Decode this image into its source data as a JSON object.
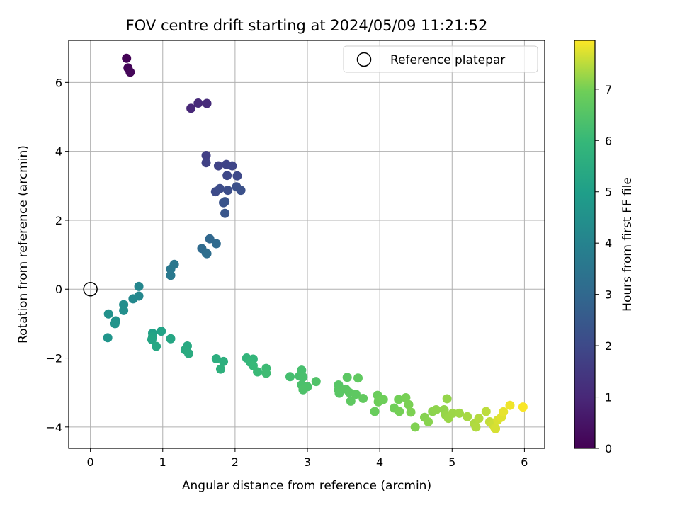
{
  "chart_data": {
    "type": "scatter",
    "title": "FOV centre drift starting at 2024/05/09 11:21:52",
    "xlabel": "Angular distance from reference (arcmin)",
    "ylabel": "Rotation from reference (arcmin)",
    "xlim": [
      -0.3,
      6.28
    ],
    "ylim": [
      -4.62,
      7.22
    ],
    "xticks": [
      0,
      1,
      2,
      3,
      4,
      5,
      6
    ],
    "yticks": [
      -4,
      -2,
      0,
      2,
      4,
      6
    ],
    "grid": true,
    "legend": {
      "placement": "top-right",
      "entries": [
        "Reference platepar"
      ]
    },
    "colorbar": {
      "label": "Hours from first FF file",
      "range": [
        0,
        7.95
      ],
      "ticks": [
        0,
        1,
        2,
        3,
        4,
        5,
        6,
        7
      ],
      "colormap": "viridis"
    },
    "reference_point": {
      "x": 0,
      "y": 0,
      "label": "Reference platepar"
    },
    "points": [
      {
        "x": 0.5,
        "y": 6.7,
        "t": 0.05
      },
      {
        "x": 0.52,
        "y": 6.42,
        "t": 0.1
      },
      {
        "x": 0.55,
        "y": 6.3,
        "t": 0.15
      },
      {
        "x": 1.39,
        "y": 5.25,
        "t": 1.0
      },
      {
        "x": 1.49,
        "y": 5.4,
        "t": 1.05
      },
      {
        "x": 1.61,
        "y": 5.39,
        "t": 1.1
      },
      {
        "x": 1.6,
        "y": 3.88,
        "t": 1.7
      },
      {
        "x": 1.6,
        "y": 3.67,
        "t": 1.75
      },
      {
        "x": 1.77,
        "y": 3.58,
        "t": 1.8
      },
      {
        "x": 1.88,
        "y": 3.62,
        "t": 1.85
      },
      {
        "x": 1.96,
        "y": 3.58,
        "t": 1.9
      },
      {
        "x": 1.89,
        "y": 3.3,
        "t": 1.95
      },
      {
        "x": 2.03,
        "y": 3.29,
        "t": 2.0
      },
      {
        "x": 1.73,
        "y": 2.83,
        "t": 2.05
      },
      {
        "x": 1.79,
        "y": 2.92,
        "t": 2.1
      },
      {
        "x": 1.9,
        "y": 2.87,
        "t": 2.15
      },
      {
        "x": 2.02,
        "y": 2.97,
        "t": 2.2
      },
      {
        "x": 2.08,
        "y": 2.87,
        "t": 2.25
      },
      {
        "x": 1.84,
        "y": 2.51,
        "t": 2.3
      },
      {
        "x": 1.86,
        "y": 2.54,
        "t": 2.35
      },
      {
        "x": 1.86,
        "y": 2.2,
        "t": 2.4
      },
      {
        "x": 1.65,
        "y": 1.46,
        "t": 3.0
      },
      {
        "x": 1.74,
        "y": 1.32,
        "t": 3.05
      },
      {
        "x": 1.54,
        "y": 1.18,
        "t": 3.1
      },
      {
        "x": 1.6,
        "y": 1.05,
        "t": 3.15
      },
      {
        "x": 1.61,
        "y": 1.03,
        "t": 3.2
      },
      {
        "x": 1.16,
        "y": 0.72,
        "t": 3.55
      },
      {
        "x": 1.11,
        "y": 0.58,
        "t": 3.6
      },
      {
        "x": 1.11,
        "y": 0.4,
        "t": 3.65
      },
      {
        "x": 0.67,
        "y": 0.08,
        "t": 4.1
      },
      {
        "x": 0.67,
        "y": -0.2,
        "t": 4.15
      },
      {
        "x": 0.59,
        "y": -0.28,
        "t": 4.2
      },
      {
        "x": 0.46,
        "y": -0.45,
        "t": 4.4
      },
      {
        "x": 0.46,
        "y": -0.62,
        "t": 4.45
      },
      {
        "x": 0.25,
        "y": -0.72,
        "t": 4.5
      },
      {
        "x": 0.35,
        "y": -0.92,
        "t": 4.55
      },
      {
        "x": 0.34,
        "y": -1.0,
        "t": 4.6
      },
      {
        "x": 0.24,
        "y": -1.41,
        "t": 4.65
      },
      {
        "x": 0.86,
        "y": -1.28,
        "t": 5.1
      },
      {
        "x": 0.98,
        "y": -1.22,
        "t": 5.15
      },
      {
        "x": 0.86,
        "y": -1.38,
        "t": 5.2
      },
      {
        "x": 0.85,
        "y": -1.46,
        "t": 5.25
      },
      {
        "x": 1.11,
        "y": -1.44,
        "t": 5.3
      },
      {
        "x": 0.91,
        "y": -1.66,
        "t": 5.35
      },
      {
        "x": 1.34,
        "y": -1.65,
        "t": 5.4
      },
      {
        "x": 1.31,
        "y": -1.76,
        "t": 5.45
      },
      {
        "x": 1.36,
        "y": -1.87,
        "t": 5.5
      },
      {
        "x": 1.74,
        "y": -2.02,
        "t": 5.6
      },
      {
        "x": 1.84,
        "y": -2.1,
        "t": 5.65
      },
      {
        "x": 1.8,
        "y": -2.32,
        "t": 5.7
      },
      {
        "x": 2.16,
        "y": -2.0,
        "t": 5.85
      },
      {
        "x": 2.25,
        "y": -2.03,
        "t": 5.9
      },
      {
        "x": 2.21,
        "y": -2.12,
        "t": 5.95
      },
      {
        "x": 2.25,
        "y": -2.22,
        "t": 6.0
      },
      {
        "x": 2.31,
        "y": -2.4,
        "t": 6.05
      },
      {
        "x": 2.43,
        "y": -2.3,
        "t": 6.1
      },
      {
        "x": 2.43,
        "y": -2.44,
        "t": 6.15
      },
      {
        "x": 2.76,
        "y": -2.54,
        "t": 6.25
      },
      {
        "x": 2.89,
        "y": -2.52,
        "t": 6.28
      },
      {
        "x": 2.92,
        "y": -2.35,
        "t": 6.3
      },
      {
        "x": 2.94,
        "y": -2.55,
        "t": 6.32
      },
      {
        "x": 2.92,
        "y": -2.78,
        "t": 6.34
      },
      {
        "x": 2.95,
        "y": -2.88,
        "t": 6.36
      },
      {
        "x": 3.0,
        "y": -2.83,
        "t": 6.38
      },
      {
        "x": 2.94,
        "y": -2.92,
        "t": 6.4
      },
      {
        "x": 3.12,
        "y": -2.68,
        "t": 6.45
      },
      {
        "x": 3.43,
        "y": -2.78,
        "t": 6.55
      },
      {
        "x": 3.43,
        "y": -2.92,
        "t": 6.58
      },
      {
        "x": 3.44,
        "y": -3.02,
        "t": 6.6
      },
      {
        "x": 3.53,
        "y": -2.9,
        "t": 6.62
      },
      {
        "x": 3.55,
        "y": -2.56,
        "t": 6.64
      },
      {
        "x": 3.58,
        "y": -3.0,
        "t": 6.66
      },
      {
        "x": 3.67,
        "y": -3.05,
        "t": 6.68
      },
      {
        "x": 3.6,
        "y": -3.25,
        "t": 6.7
      },
      {
        "x": 3.7,
        "y": -2.58,
        "t": 6.72
      },
      {
        "x": 3.77,
        "y": -3.17,
        "t": 6.74
      },
      {
        "x": 3.93,
        "y": -3.55,
        "t": 6.85
      },
      {
        "x": 3.97,
        "y": -3.08,
        "t": 6.88
      },
      {
        "x": 4.0,
        "y": -3.2,
        "t": 6.9
      },
      {
        "x": 3.98,
        "y": -3.27,
        "t": 6.92
      },
      {
        "x": 4.05,
        "y": -3.2,
        "t": 6.94
      },
      {
        "x": 4.2,
        "y": -3.45,
        "t": 6.96
      },
      {
        "x": 4.26,
        "y": -3.2,
        "t": 6.98
      },
      {
        "x": 4.27,
        "y": -3.55,
        "t": 7.0
      },
      {
        "x": 4.36,
        "y": -3.15,
        "t": 7.02
      },
      {
        "x": 4.4,
        "y": -3.35,
        "t": 7.04
      },
      {
        "x": 4.43,
        "y": -3.57,
        "t": 7.06
      },
      {
        "x": 4.49,
        "y": -4.0,
        "t": 7.08
      },
      {
        "x": 4.62,
        "y": -3.72,
        "t": 7.12
      },
      {
        "x": 4.67,
        "y": -3.85,
        "t": 7.14
      },
      {
        "x": 4.73,
        "y": -3.55,
        "t": 7.16
      },
      {
        "x": 4.78,
        "y": -3.5,
        "t": 7.18
      },
      {
        "x": 4.89,
        "y": -3.5,
        "t": 7.2
      },
      {
        "x": 4.93,
        "y": -3.18,
        "t": 7.22
      },
      {
        "x": 4.91,
        "y": -3.65,
        "t": 7.24
      },
      {
        "x": 4.95,
        "y": -3.75,
        "t": 7.26
      },
      {
        "x": 5.01,
        "y": -3.6,
        "t": 7.28
      },
      {
        "x": 5.1,
        "y": -3.6,
        "t": 7.3
      },
      {
        "x": 5.21,
        "y": -3.7,
        "t": 7.35
      },
      {
        "x": 5.31,
        "y": -3.9,
        "t": 7.4
      },
      {
        "x": 5.33,
        "y": -4.0,
        "t": 7.42
      },
      {
        "x": 5.37,
        "y": -3.75,
        "t": 7.44
      },
      {
        "x": 5.47,
        "y": -3.55,
        "t": 7.5
      },
      {
        "x": 5.52,
        "y": -3.85,
        "t": 7.55
      },
      {
        "x": 5.56,
        "y": -3.92,
        "t": 7.6
      },
      {
        "x": 5.59,
        "y": -4.02,
        "t": 7.65
      },
      {
        "x": 5.6,
        "y": -4.05,
        "t": 7.68
      },
      {
        "x": 5.63,
        "y": -3.8,
        "t": 7.7
      },
      {
        "x": 5.68,
        "y": -3.72,
        "t": 7.75
      },
      {
        "x": 5.71,
        "y": -3.56,
        "t": 7.8
      },
      {
        "x": 5.8,
        "y": -3.37,
        "t": 7.85
      },
      {
        "x": 5.98,
        "y": -3.42,
        "t": 7.92
      }
    ]
  }
}
